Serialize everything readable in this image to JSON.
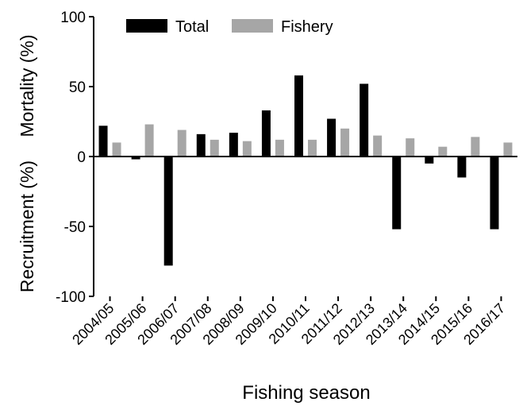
{
  "chart_data": {
    "type": "bar",
    "categories": [
      "2004/05",
      "2005/06",
      "2006/07",
      "2007/08",
      "2008/09",
      "2009/10",
      "2010/11",
      "2011/12",
      "2012/13",
      "2013/14",
      "2014/15",
      "2015/16",
      "2016/17"
    ],
    "series": [
      {
        "name": "Total",
        "color": "#000000",
        "values": [
          22,
          -2,
          -78,
          16,
          17,
          33,
          58,
          27,
          52,
          -52,
          -5,
          -15,
          -52
        ]
      },
      {
        "name": "Fishery",
        "color": "#a6a6a6",
        "values": [
          10,
          23,
          19,
          12,
          11,
          12,
          12,
          20,
          15,
          13,
          7,
          14,
          10
        ]
      }
    ],
    "xlabel": "Fishing season",
    "ylabel_top": "Mortality (%)",
    "ylabel_bottom": "Recruitment (%)",
    "ylim": [
      -100,
      100
    ],
    "yticks": [
      100,
      50,
      0,
      -50,
      -100
    ],
    "ytick_labels": [
      "100",
      "50",
      "0",
      "-50",
      "-100"
    ],
    "legend_position": "top"
  }
}
